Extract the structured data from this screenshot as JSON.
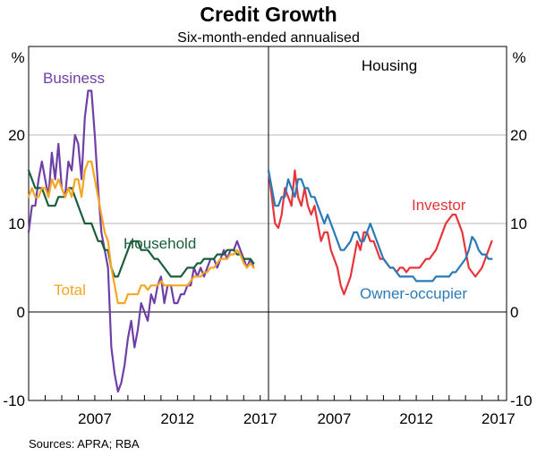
{
  "title": "Credit Growth",
  "subtitle": "Six-month-ended annualised",
  "source": "Sources:   APRA; RBA",
  "chart_data": [
    {
      "type": "line",
      "panel": "left",
      "panel_title": "",
      "ylabel": "%",
      "ylim": [
        -10,
        30
      ],
      "yticks": [
        -10,
        0,
        10,
        20
      ],
      "xlim": [
        2003,
        2017.5
      ],
      "xticks": [
        2007,
        2012,
        2017
      ],
      "grid": true,
      "series": [
        {
          "name": "Business",
          "color": "#6f3fa8",
          "x": [
            2003.0,
            2003.2,
            2003.4,
            2003.6,
            2003.8,
            2004.0,
            2004.2,
            2004.4,
            2004.6,
            2004.8,
            2005.0,
            2005.2,
            2005.4,
            2005.6,
            2005.8,
            2006.0,
            2006.2,
            2006.4,
            2006.6,
            2006.8,
            2007.0,
            2007.2,
            2007.4,
            2007.6,
            2007.8,
            2008.0,
            2008.2,
            2008.4,
            2008.6,
            2008.8,
            2009.0,
            2009.2,
            2009.4,
            2009.6,
            2009.8,
            2010.0,
            2010.2,
            2010.4,
            2010.6,
            2010.8,
            2011.0,
            2011.2,
            2011.4,
            2011.6,
            2011.8,
            2012.0,
            2012.2,
            2012.4,
            2012.6,
            2012.8,
            2013.0,
            2013.2,
            2013.4,
            2013.6,
            2013.8,
            2014.0,
            2014.2,
            2014.4,
            2014.6,
            2014.8,
            2015.0,
            2015.2,
            2015.4,
            2015.6,
            2015.8,
            2016.0,
            2016.2,
            2016.4,
            2016.6
          ],
          "values": [
            9,
            12,
            12,
            15,
            17,
            15,
            13,
            18,
            15,
            19,
            14,
            13,
            17,
            16,
            20,
            19,
            15,
            22,
            25,
            25,
            20,
            14,
            9,
            7,
            5,
            -4,
            -7,
            -9,
            -8,
            -6,
            -3,
            -1,
            -4,
            -2,
            1,
            0,
            -1,
            2,
            1,
            3,
            4,
            1,
            3,
            3,
            1,
            1,
            2,
            2,
            3,
            3,
            5,
            4,
            5,
            4,
            5,
            6,
            6,
            5,
            6,
            7,
            6,
            7,
            7,
            8,
            7,
            6,
            5,
            6,
            5
          ]
        },
        {
          "name": "Household",
          "color": "#1a5e3a",
          "x": [
            2003.0,
            2003.2,
            2003.4,
            2003.6,
            2003.8,
            2004.0,
            2004.2,
            2004.4,
            2004.6,
            2004.8,
            2005.0,
            2005.2,
            2005.4,
            2005.6,
            2005.8,
            2006.0,
            2006.2,
            2006.4,
            2006.6,
            2006.8,
            2007.0,
            2007.2,
            2007.4,
            2007.6,
            2007.8,
            2008.0,
            2008.2,
            2008.4,
            2008.6,
            2008.8,
            2009.0,
            2009.2,
            2009.4,
            2009.6,
            2009.8,
            2010.0,
            2010.2,
            2010.4,
            2010.6,
            2010.8,
            2011.0,
            2011.2,
            2011.4,
            2011.6,
            2011.8,
            2012.0,
            2012.2,
            2012.4,
            2012.6,
            2012.8,
            2013.0,
            2013.2,
            2013.4,
            2013.6,
            2013.8,
            2014.0,
            2014.2,
            2014.4,
            2014.6,
            2014.8,
            2015.0,
            2015.2,
            2015.4,
            2015.6,
            2015.8,
            2016.0,
            2016.2,
            2016.4,
            2016.6
          ],
          "values": [
            16,
            15,
            14,
            14,
            14,
            13,
            12,
            12,
            12,
            13,
            13,
            13,
            14,
            14,
            13,
            12,
            11,
            10,
            10,
            10,
            9,
            8,
            8,
            7,
            7,
            5,
            4,
            4,
            5,
            6,
            7,
            8,
            8,
            8,
            7,
            7,
            7,
            6.5,
            6,
            6,
            5.5,
            5,
            4.5,
            4,
            4,
            4,
            4,
            4.5,
            5,
            5,
            5,
            5.5,
            5.5,
            6,
            6,
            6,
            6,
            6.5,
            6.5,
            6.5,
            7,
            7,
            7,
            6.5,
            6.5,
            6,
            6,
            6,
            5.5
          ]
        },
        {
          "name": "Total",
          "color": "#f5a623",
          "x": [
            2003.0,
            2003.2,
            2003.4,
            2003.6,
            2003.8,
            2004.0,
            2004.2,
            2004.4,
            2004.6,
            2004.8,
            2005.0,
            2005.2,
            2005.4,
            2005.6,
            2005.8,
            2006.0,
            2006.2,
            2006.4,
            2006.6,
            2006.8,
            2007.0,
            2007.2,
            2007.4,
            2007.6,
            2007.8,
            2008.0,
            2008.2,
            2008.4,
            2008.6,
            2008.8,
            2009.0,
            2009.2,
            2009.4,
            2009.6,
            2009.8,
            2010.0,
            2010.2,
            2010.4,
            2010.6,
            2010.8,
            2011.0,
            2011.2,
            2011.4,
            2011.6,
            2011.8,
            2012.0,
            2012.2,
            2012.4,
            2012.6,
            2012.8,
            2013.0,
            2013.2,
            2013.4,
            2013.6,
            2013.8,
            2014.0,
            2014.2,
            2014.4,
            2014.6,
            2014.8,
            2015.0,
            2015.2,
            2015.4,
            2015.6,
            2015.8,
            2016.0,
            2016.2,
            2016.4,
            2016.6
          ],
          "values": [
            13,
            14,
            13,
            13,
            14,
            14,
            13,
            15,
            14,
            15,
            14,
            13,
            14,
            13,
            15,
            15,
            13,
            16,
            17,
            17,
            15,
            13,
            11,
            9,
            8,
            5,
            3,
            1,
            1,
            1,
            2,
            2,
            2,
            2,
            3,
            3,
            2.5,
            3,
            3,
            3,
            3.5,
            3,
            3,
            3,
            3,
            3,
            3,
            3,
            3,
            3.5,
            4,
            4,
            4,
            4.5,
            4.5,
            5,
            5,
            5.5,
            6,
            6,
            6,
            6.5,
            6.5,
            7,
            6.5,
            5.5,
            5,
            5.5,
            5
          ]
        }
      ],
      "labels": [
        {
          "text": "Business",
          "color": "#6f3fa8"
        },
        {
          "text": "Household",
          "color": "#1a5e3a"
        },
        {
          "text": "Total",
          "color": "#f5a623"
        }
      ]
    },
    {
      "type": "line",
      "panel": "right",
      "panel_title": "Housing",
      "ylabel": "%",
      "ylim": [
        -10,
        30
      ],
      "yticks": [
        -10,
        0,
        10,
        20
      ],
      "xlim": [
        2003,
        2017.5
      ],
      "xticks": [
        2007,
        2012,
        2017
      ],
      "grid": true,
      "series": [
        {
          "name": "Investor",
          "color": "#e8343a",
          "x": [
            2003.0,
            2003.2,
            2003.4,
            2003.6,
            2003.8,
            2004.0,
            2004.2,
            2004.4,
            2004.6,
            2004.8,
            2005.0,
            2005.2,
            2005.4,
            2005.6,
            2005.8,
            2006.0,
            2006.2,
            2006.4,
            2006.6,
            2006.8,
            2007.0,
            2007.2,
            2007.4,
            2007.6,
            2007.8,
            2008.0,
            2008.2,
            2008.4,
            2008.6,
            2008.8,
            2009.0,
            2009.2,
            2009.4,
            2009.6,
            2009.8,
            2010.0,
            2010.2,
            2010.4,
            2010.6,
            2010.8,
            2011.0,
            2011.2,
            2011.4,
            2011.6,
            2011.8,
            2012.0,
            2012.2,
            2012.4,
            2012.6,
            2012.8,
            2013.0,
            2013.2,
            2013.4,
            2013.6,
            2013.8,
            2014.0,
            2014.2,
            2014.4,
            2014.6,
            2014.8,
            2015.0,
            2015.2,
            2015.4,
            2015.6,
            2015.8,
            2016.0,
            2016.2,
            2016.4,
            2016.6
          ],
          "values": [
            16,
            13,
            10,
            9.5,
            11,
            14,
            13,
            12,
            16,
            13,
            12,
            14,
            12,
            11,
            12,
            10,
            8,
            9,
            9,
            7,
            6,
            5,
            3,
            2,
            3,
            4,
            6,
            8,
            7,
            9,
            9,
            8,
            8,
            7,
            6,
            6,
            5.5,
            5,
            5,
            4.5,
            5,
            5,
            4.5,
            5,
            5,
            5,
            5,
            5.5,
            6,
            6,
            6.5,
            7,
            8,
            9,
            10,
            10.5,
            11,
            11,
            10,
            9,
            7,
            5,
            4.5,
            4,
            4.5,
            5,
            6,
            7,
            8
          ]
        },
        {
          "name": "Owner-occupier",
          "color": "#2a7ab8",
          "x": [
            2003.0,
            2003.2,
            2003.4,
            2003.6,
            2003.8,
            2004.0,
            2004.2,
            2004.4,
            2004.6,
            2004.8,
            2005.0,
            2005.2,
            2005.4,
            2005.6,
            2005.8,
            2006.0,
            2006.2,
            2006.4,
            2006.6,
            2006.8,
            2007.0,
            2007.2,
            2007.4,
            2007.6,
            2007.8,
            2008.0,
            2008.2,
            2008.4,
            2008.6,
            2008.8,
            2009.0,
            2009.2,
            2009.4,
            2009.6,
            2009.8,
            2010.0,
            2010.2,
            2010.4,
            2010.6,
            2010.8,
            2011.0,
            2011.2,
            2011.4,
            2011.6,
            2011.8,
            2012.0,
            2012.2,
            2012.4,
            2012.6,
            2012.8,
            2013.0,
            2013.2,
            2013.4,
            2013.6,
            2013.8,
            2014.0,
            2014.2,
            2014.4,
            2014.6,
            2014.8,
            2015.0,
            2015.2,
            2015.4,
            2015.6,
            2015.8,
            2016.0,
            2016.2,
            2016.4,
            2016.6
          ],
          "values": [
            16,
            14,
            12,
            12,
            13,
            13,
            15,
            14,
            13,
            15,
            15,
            14,
            14,
            13,
            13,
            12,
            11,
            10,
            11,
            10,
            9,
            8,
            7,
            7,
            7.5,
            8,
            9,
            9,
            8,
            8,
            9,
            10,
            9,
            8,
            7,
            6,
            5.5,
            5,
            5,
            4.5,
            4,
            4,
            4,
            4,
            4,
            3.5,
            3.5,
            3.5,
            3.5,
            3.5,
            3.5,
            4,
            4,
            4,
            4,
            4,
            4.5,
            4.5,
            5,
            5.5,
            6,
            7,
            8.5,
            8,
            7,
            6.5,
            6.5,
            6,
            6
          ]
        }
      ],
      "labels": [
        {
          "text": "Investor",
          "color": "#e8343a"
        },
        {
          "text": "Owner-occupier",
          "color": "#2a7ab8"
        }
      ]
    }
  ]
}
